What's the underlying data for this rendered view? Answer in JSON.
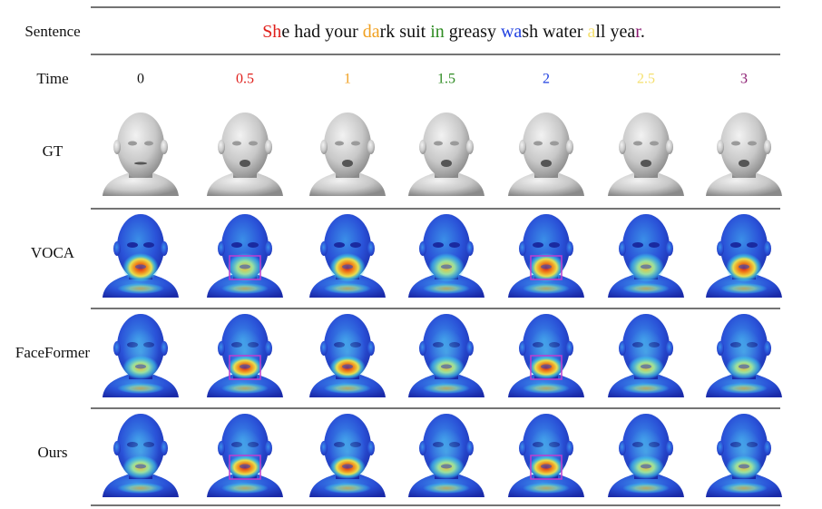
{
  "header": {
    "sentence_label": "Sentence",
    "time_label": "Time"
  },
  "sentence": [
    {
      "text": "Sh",
      "color": "#e0201c"
    },
    {
      "text": "e had your ",
      "color": "#111111"
    },
    {
      "text": "da",
      "color": "#f0a020"
    },
    {
      "text": "rk suit ",
      "color": "#111111"
    },
    {
      "text": "in",
      "color": "#2e8b22"
    },
    {
      "text": " greasy ",
      "color": "#111111"
    },
    {
      "text": "wa",
      "color": "#2040e0"
    },
    {
      "text": "sh water ",
      "color": "#111111"
    },
    {
      "text": "a",
      "color": "#f5e070"
    },
    {
      "text": "ll yea",
      "color": "#111111"
    },
    {
      "text": "r",
      "color": "#8a1a70"
    },
    {
      "text": ".",
      "color": "#111111"
    }
  ],
  "times": [
    {
      "text": "0",
      "color": "#111111"
    },
    {
      "text": "0.5",
      "color": "#e0201c"
    },
    {
      "text": "1",
      "color": "#f0a020"
    },
    {
      "text": "1.5",
      "color": "#2e8b22"
    },
    {
      "text": "2",
      "color": "#2040e0"
    },
    {
      "text": "2.5",
      "color": "#f5e070"
    },
    {
      "text": "3",
      "color": "#8a1a70"
    }
  ],
  "rows": [
    {
      "label": "GT"
    },
    {
      "label": "VOCA"
    },
    {
      "label": "FaceFormer"
    },
    {
      "label": "Ours"
    }
  ]
}
